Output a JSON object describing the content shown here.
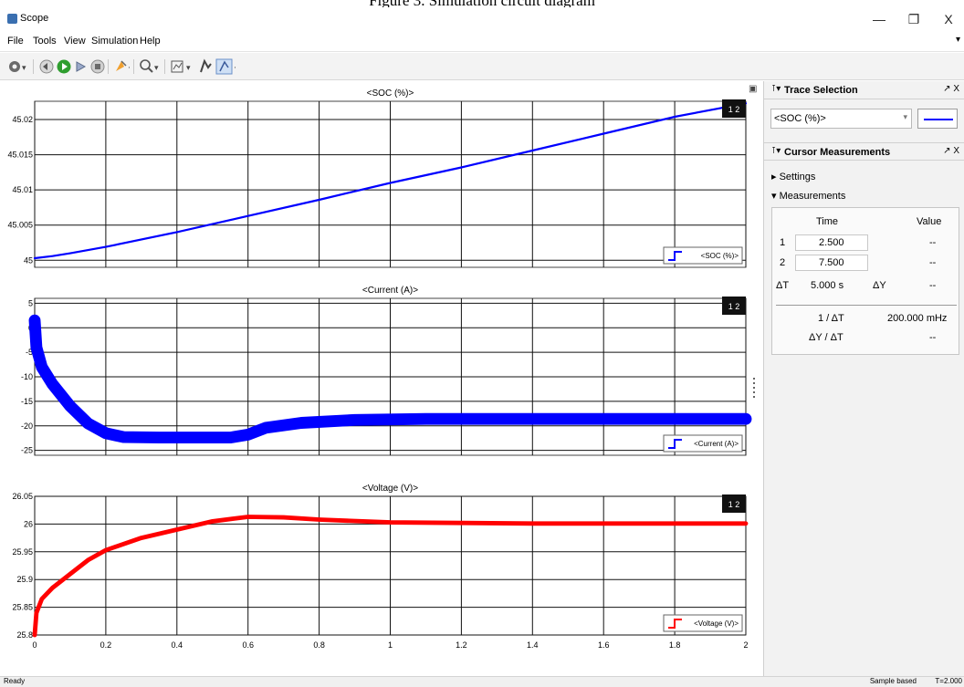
{
  "figure_caption": "Figure 3. Simulation circuit diagram",
  "window": {
    "title": "Scope",
    "minimize": "—",
    "restore": "❐",
    "close": "X"
  },
  "menu": {
    "items": [
      "File",
      "Tools",
      "View",
      "Simulation",
      "Help"
    ],
    "overflow": "▾"
  },
  "toolbar": {
    "icons": [
      "gear-icon",
      "step-back-icon",
      "run-icon",
      "step-forward-icon",
      "stop-icon",
      "highlight-icon",
      "zoom-icon",
      "scale-axes-icon",
      "triggers-icon",
      "cursor-measurements-icon"
    ]
  },
  "colors": {
    "soc": "#0000ff",
    "current": "#0000ff",
    "voltage": "#ff0000",
    "grid": "#111111"
  },
  "plots_header": {
    "panel_button": "▣"
  },
  "chart_data": [
    {
      "type": "line",
      "title": "<SOC (%)>",
      "legend": "<SOC (%)>",
      "legend_position": "bottom-right",
      "grid": true,
      "xlim": [
        0,
        2
      ],
      "x_ticks": [
        0,
        0.2,
        0.4,
        0.6,
        0.8,
        1,
        1.2,
        1.4,
        1.6,
        1.8,
        2
      ],
      "ylim": [
        44.999,
        45.0226
      ],
      "y_ticks": [
        45,
        45.005,
        45.01,
        45.015,
        45.02
      ],
      "y_tick_labels": [
        "45",
        "45.005",
        "45.01",
        "45.015",
        "45.02"
      ],
      "badge": "1 2",
      "series": [
        {
          "x": [
            0,
            0.05,
            0.1,
            0.2,
            0.4,
            0.6,
            0.8,
            1.0,
            1.2,
            1.4,
            1.6,
            1.8,
            2.0
          ],
          "y": [
            45.0003,
            45.0006,
            45.001,
            45.0019,
            45.004,
            45.0063,
            45.0086,
            45.011,
            45.0132,
            45.0156,
            45.018,
            45.0204,
            45.0223
          ]
        }
      ]
    },
    {
      "type": "line",
      "title": "<Current (A)>",
      "legend": "<Current (A)>",
      "legend_position": "bottom-right",
      "grid": true,
      "xlim": [
        0,
        2
      ],
      "x_ticks": [
        0,
        0.2,
        0.4,
        0.6,
        0.8,
        1,
        1.2,
        1.4,
        1.6,
        1.8,
        2
      ],
      "ylim": [
        -26,
        6
      ],
      "y_ticks": [
        5,
        0,
        -5,
        -10,
        -15,
        -20,
        -25
      ],
      "y_tick_labels": [
        "5",
        "0",
        "-5",
        "-10",
        "-15",
        "-20",
        "-25"
      ],
      "badge": "1 2",
      "band": 1.2,
      "series": [
        {
          "x": [
            0,
            0.005,
            0.02,
            0.05,
            0.1,
            0.15,
            0.2,
            0.25,
            0.35,
            0.45,
            0.55,
            0.6,
            0.65,
            0.75,
            0.9,
            1.1,
            1.4,
            1.7,
            2.0
          ],
          "y": [
            1.5,
            -4,
            -8,
            -11.5,
            -16,
            -19.5,
            -21.5,
            -22.3,
            -22.4,
            -22.4,
            -22.4,
            -21.8,
            -20.4,
            -19.4,
            -18.8,
            -18.6,
            -18.6,
            -18.6,
            -18.6
          ]
        }
      ]
    },
    {
      "type": "line",
      "title": "<Voltage (V)>",
      "legend": "<Voltage (V)>",
      "legend_position": "bottom-right",
      "grid": true,
      "xlim": [
        0,
        2
      ],
      "x_ticks": [
        0,
        0.2,
        0.4,
        0.6,
        0.8,
        1,
        1.2,
        1.4,
        1.6,
        1.8,
        2
      ],
      "ylim": [
        25.8,
        26.05
      ],
      "y_ticks": [
        26.05,
        26,
        25.95,
        25.9,
        25.85,
        25.8
      ],
      "y_tick_labels": [
        "26.05",
        "26",
        "25.95",
        "25.9",
        "25.85",
        "25.8"
      ],
      "badge": "1 2",
      "band": 0.004,
      "series": [
        {
          "x": [
            0,
            0.005,
            0.02,
            0.05,
            0.1,
            0.15,
            0.2,
            0.3,
            0.4,
            0.5,
            0.6,
            0.7,
            0.8,
            1.0,
            1.2,
            1.4,
            1.6,
            1.8,
            2.0
          ],
          "y": [
            25.8,
            25.84,
            25.865,
            25.885,
            25.91,
            25.935,
            25.953,
            25.975,
            25.99,
            26.005,
            26.013,
            26.012,
            26.008,
            26.003,
            26.002,
            26.001,
            26.001,
            26.001,
            26.001
          ]
        }
      ]
    }
  ],
  "trace_selection": {
    "title": "Trace Selection",
    "value": "<SOC (%)>",
    "pin": "⊺▾",
    "controls": "↗ X"
  },
  "cursor_measurements": {
    "title": "Cursor Measurements",
    "pin": "⊺▾",
    "controls": "↗ X",
    "settings_label": "▸ Settings",
    "measurements_label": "▾ Measurements",
    "col_time": "Time",
    "col_value": "Value",
    "row1_label": "1",
    "row1_time": "2.500",
    "row1_value": "--",
    "row2_label": "2",
    "row2_time": "7.500",
    "row2_value": "--",
    "dt_label": "ΔT",
    "dt_value": "5.000 s",
    "dy_label": "ΔY",
    "dy_value": "--",
    "inv_dt_label": "1 / ΔT",
    "inv_dt_value": "200.000 mHz",
    "dydt_label": "ΔY / ΔT",
    "dydt_value": "--"
  },
  "status": {
    "left": "Ready",
    "mode": "Sample based",
    "time": "T=2.000"
  }
}
